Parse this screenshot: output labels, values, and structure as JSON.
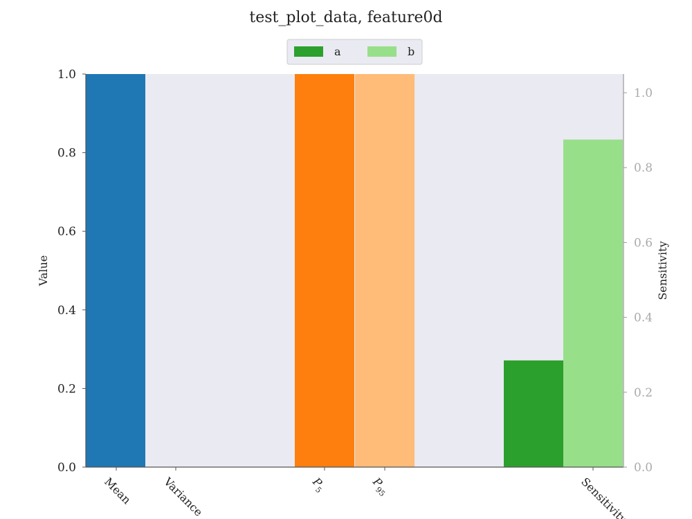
{
  "chart_data": {
    "type": "bar",
    "title": "test_plot_data, feature0d",
    "ylabel": "Value",
    "ylabel_right": "Sensitivity",
    "ylim": [
      0,
      1.0
    ],
    "ylim_right": [
      0,
      1.05
    ],
    "yticks": [
      "0.0",
      "0.2",
      "0.4",
      "0.6",
      "0.8",
      "1.0"
    ],
    "yticks_right": [
      "0.0",
      "0.2",
      "0.4",
      "0.6",
      "0.8",
      "1.0"
    ],
    "yticks_values": [
      0,
      0.2,
      0.4,
      0.6,
      0.8,
      1.0
    ],
    "yticks_right_values": [
      0,
      0.2,
      0.4,
      0.6,
      0.8,
      1.0
    ],
    "categories": [
      {
        "label": "Mean",
        "sub": ""
      },
      {
        "label": "Variance",
        "sub": ""
      },
      {
        "label": "P",
        "sub": "5"
      },
      {
        "label": "P",
        "sub": "95"
      },
      {
        "label": "Sensitivity",
        "sub": ""
      }
    ],
    "bars": [
      {
        "category": "Mean",
        "axis": "left",
        "value": 1.0,
        "color": "#1f77b4"
      },
      {
        "category": "Variance",
        "axis": "left",
        "value": 0.0,
        "color": "#aec7e8"
      },
      {
        "category": "P5",
        "axis": "left",
        "value": 1.0,
        "color": "#ff7f0e"
      },
      {
        "category": "P95",
        "axis": "left",
        "value": 1.0,
        "color": "#ffbb78"
      },
      {
        "category": "Sensitivity",
        "series": "a",
        "axis": "right",
        "value": 0.285,
        "color": "#2ca02c"
      },
      {
        "category": "Sensitivity",
        "series": "b",
        "axis": "right",
        "value": 0.875,
        "color": "#98df8a"
      }
    ],
    "legend": {
      "placement": "top-center",
      "entries": [
        {
          "name": "a",
          "color": "#2ca02c"
        },
        {
          "name": "b",
          "color": "#98df8a"
        }
      ]
    },
    "background_color": "#eaeaf2",
    "grid": false
  }
}
